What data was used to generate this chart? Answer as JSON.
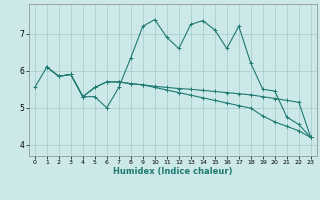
{
  "xlabel": "Humidex (Indice chaleur)",
  "bg_color": "#cce8e8",
  "grid_color": "#aacfcf",
  "line_color": "#1e7a72",
  "xlim": [
    -0.5,
    23.5
  ],
  "ylim": [
    3.7,
    7.8
  ],
  "xticks": [
    0,
    1,
    2,
    3,
    4,
    5,
    6,
    7,
    8,
    9,
    10,
    11,
    12,
    13,
    14,
    15,
    16,
    17,
    18,
    19,
    20,
    21,
    22,
    23
  ],
  "yticks": [
    4,
    5,
    6,
    7
  ],
  "lines": [
    {
      "x": [
        0,
        1,
        2,
        3,
        4,
        5,
        6,
        7,
        8,
        9,
        10,
        11,
        12,
        13,
        14,
        15,
        16,
        17,
        18,
        19,
        20,
        21,
        22,
        23
      ],
      "y": [
        5.55,
        6.1,
        5.85,
        5.9,
        5.3,
        5.3,
        5.0,
        5.55,
        6.35,
        7.2,
        7.38,
        6.9,
        6.6,
        7.25,
        7.35,
        7.1,
        6.6,
        7.2,
        6.2,
        5.5,
        5.45,
        4.75,
        4.55,
        4.2
      ]
    },
    {
      "x": [
        1,
        2,
        3,
        4,
        5,
        6,
        7,
        8,
        9,
        10,
        11,
        12,
        13,
        14,
        15,
        16,
        17,
        18,
        19,
        20,
        21,
        22,
        23
      ],
      "y": [
        6.1,
        5.85,
        5.9,
        5.3,
        5.55,
        5.7,
        5.7,
        5.65,
        5.62,
        5.58,
        5.55,
        5.52,
        5.5,
        5.47,
        5.44,
        5.41,
        5.38,
        5.35,
        5.3,
        5.25,
        5.2,
        5.15,
        4.2
      ]
    },
    {
      "x": [
        1,
        2,
        3,
        4,
        5,
        6,
        7,
        8,
        9,
        10,
        11,
        12,
        13,
        14,
        15,
        16,
        17,
        18,
        19,
        20,
        21,
        22,
        23
      ],
      "y": [
        6.1,
        5.85,
        5.9,
        5.3,
        5.55,
        5.7,
        5.7,
        5.65,
        5.62,
        5.55,
        5.48,
        5.41,
        5.34,
        5.27,
        5.2,
        5.13,
        5.06,
        4.99,
        4.78,
        4.62,
        4.5,
        4.38,
        4.2
      ]
    }
  ]
}
